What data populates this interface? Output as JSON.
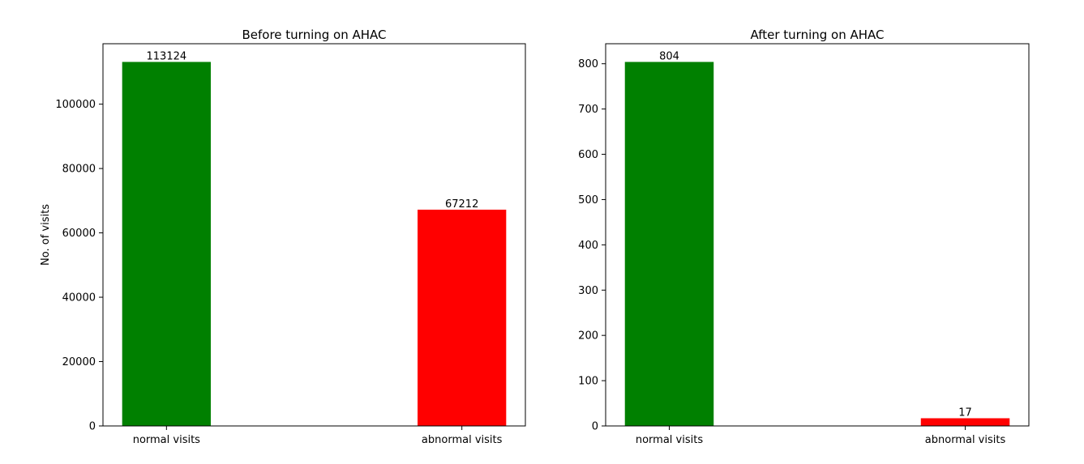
{
  "chart_data": [
    {
      "type": "bar",
      "title": "Before turning on AHAC",
      "xlabel": "",
      "ylabel": "No. of visits",
      "categories": [
        "normal visits",
        "abnormal visits"
      ],
      "values": [
        113124,
        67212
      ],
      "colors": [
        "#008000",
        "#ff0000"
      ],
      "data_labels": [
        "113124",
        "67212"
      ],
      "ylim": [
        0,
        118780
      ],
      "yticks": [
        0,
        20000,
        40000,
        60000,
        80000,
        100000
      ],
      "ytick_labels": [
        "0",
        "20000",
        "40000",
        "60000",
        "80000",
        "100000"
      ],
      "grid": false
    },
    {
      "type": "bar",
      "title": "After turning on AHAC",
      "xlabel": "",
      "ylabel": "",
      "categories": [
        "normal visits",
        "abnormal visits"
      ],
      "values": [
        804,
        17
      ],
      "colors": [
        "#008000",
        "#ff0000"
      ],
      "data_labels": [
        "804",
        "17"
      ],
      "ylim": [
        0,
        844.2
      ],
      "yticks": [
        0,
        100,
        200,
        300,
        400,
        500,
        600,
        700,
        800
      ],
      "ytick_labels": [
        "0",
        "100",
        "200",
        "300",
        "400",
        "500",
        "600",
        "700",
        "800"
      ],
      "grid": false
    }
  ]
}
